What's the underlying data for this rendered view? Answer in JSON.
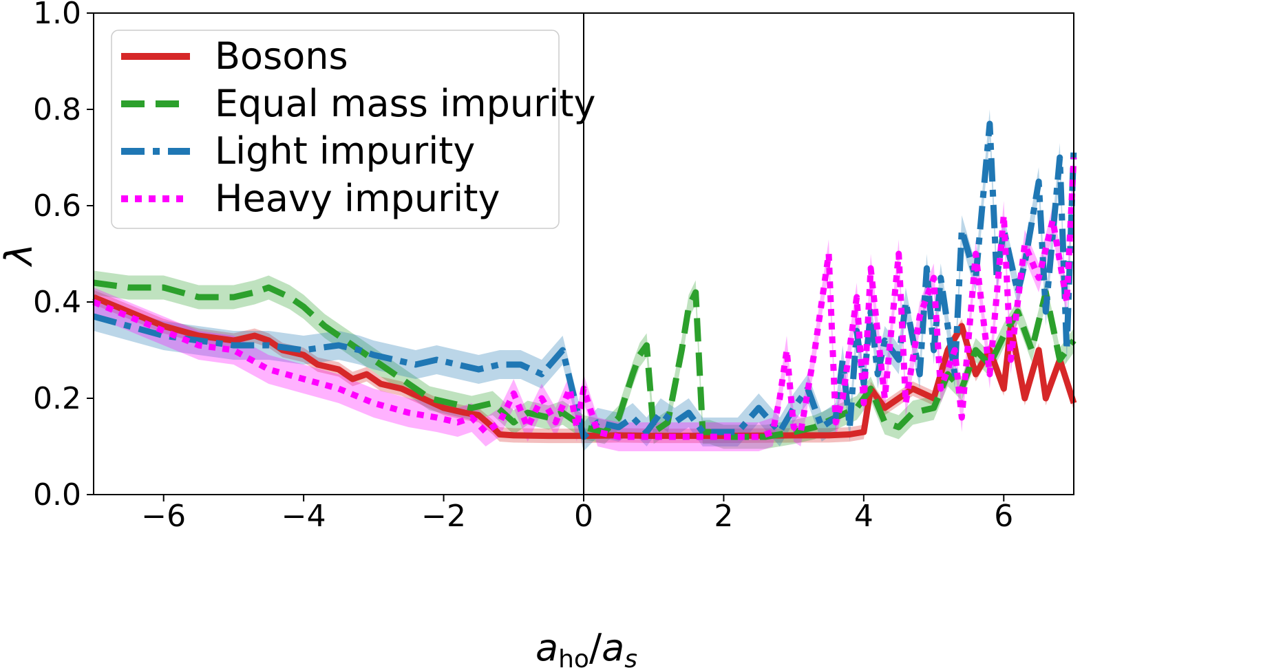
{
  "chart_data": {
    "type": "line",
    "title": "",
    "xlabel": "a_ho/a_s",
    "xlabel_parts": {
      "main1": "a",
      "sub1": "ho",
      "slash": "/",
      "main2": "a",
      "sub2": "s"
    },
    "ylabel": "λ",
    "xlim": [
      -7,
      7
    ],
    "ylim": [
      0,
      1.0
    ],
    "xticks": [
      -6,
      -4,
      -2,
      0,
      2,
      4,
      6
    ],
    "xtick_labels": [
      "−6",
      "−4",
      "−2",
      "0",
      "2",
      "4",
      "6"
    ],
    "yticks": [
      0.0,
      0.2,
      0.4,
      0.6,
      0.8,
      1.0
    ],
    "ytick_labels": [
      "0.0",
      "0.2",
      "0.4",
      "0.6",
      "0.8",
      "1.0"
    ],
    "vline_x": 0,
    "legend_position": "upper-left",
    "series": [
      {
        "name": "Bosons",
        "color": "#d62728",
        "dash": "solid",
        "x": [
          -7,
          -6.5,
          -6,
          -5.5,
          -5,
          -4.7,
          -4.5,
          -4.3,
          -4,
          -3.8,
          -3.5,
          -3.3,
          -3.1,
          -2.9,
          -2.6,
          -2.3,
          -2,
          -1.7,
          -1.5,
          -1.3,
          -1.2,
          -1,
          -0.5,
          0,
          0.5,
          1,
          2,
          3,
          3.5,
          3.8,
          4,
          4.1,
          4.3,
          4.5,
          4.7,
          5,
          5.2,
          5.4,
          5.6,
          5.8,
          6,
          6.1,
          6.3,
          6.5,
          6.6,
          6.8,
          7
        ],
        "y": [
          0.41,
          0.38,
          0.35,
          0.33,
          0.32,
          0.33,
          0.32,
          0.3,
          0.29,
          0.27,
          0.26,
          0.24,
          0.25,
          0.23,
          0.22,
          0.2,
          0.18,
          0.17,
          0.165,
          0.14,
          0.125,
          0.123,
          0.122,
          0.122,
          0.123,
          0.122,
          0.122,
          0.123,
          0.123,
          0.125,
          0.13,
          0.22,
          0.18,
          0.2,
          0.22,
          0.2,
          0.3,
          0.35,
          0.25,
          0.3,
          0.22,
          0.35,
          0.2,
          0.3,
          0.2,
          0.28,
          0.19
        ],
        "band": 0.015
      },
      {
        "name": "Equal mass impurity",
        "color": "#2ca02c",
        "dash": "dashed",
        "x": [
          -7,
          -6.5,
          -6,
          -5.5,
          -5,
          -4.7,
          -4.5,
          -4.2,
          -4,
          -3.7,
          -3.4,
          -3.1,
          -2.8,
          -2.5,
          -2.2,
          -1.9,
          -1.6,
          -1.3,
          -1,
          -0.8,
          -0.5,
          -0.3,
          0,
          0.3,
          0.5,
          0.7,
          0.8,
          0.9,
          1,
          1.2,
          1.4,
          1.5,
          1.6,
          1.7,
          1.8,
          2,
          2.3,
          2.6,
          3,
          3.3,
          3.6,
          3.9,
          4.1,
          4.3,
          4.5,
          4.7,
          5,
          5.2,
          5.4,
          5.6,
          5.8,
          6,
          6.2,
          6.4,
          6.6,
          6.8,
          7
        ],
        "y": [
          0.44,
          0.43,
          0.43,
          0.41,
          0.41,
          0.42,
          0.43,
          0.41,
          0.39,
          0.35,
          0.32,
          0.29,
          0.26,
          0.23,
          0.2,
          0.19,
          0.18,
          0.19,
          0.15,
          0.17,
          0.16,
          0.17,
          0.14,
          0.13,
          0.16,
          0.25,
          0.29,
          0.31,
          0.13,
          0.15,
          0.3,
          0.39,
          0.42,
          0.13,
          0.13,
          0.12,
          0.12,
          0.12,
          0.13,
          0.14,
          0.16,
          0.18,
          0.22,
          0.15,
          0.14,
          0.17,
          0.18,
          0.25,
          0.22,
          0.3,
          0.27,
          0.33,
          0.38,
          0.3,
          0.42,
          0.28,
          0.32
        ],
        "band": 0.025
      },
      {
        "name": "Light impurity",
        "color": "#1f77b4",
        "dash": "dashdot",
        "x": [
          -7,
          -6.5,
          -6,
          -5.5,
          -5,
          -4.5,
          -4,
          -3.5,
          -3.2,
          -3,
          -2.7,
          -2.4,
          -2.1,
          -1.8,
          -1.5,
          -1.2,
          -0.9,
          -0.6,
          -0.3,
          0,
          0.2,
          0.5,
          0.7,
          0.9,
          1.1,
          1.3,
          1.5,
          1.7,
          2,
          2.2,
          2.5,
          2.8,
          3,
          3.2,
          3.4,
          3.6,
          3.7,
          3.8,
          3.9,
          4,
          4.1,
          4.2,
          4.3,
          4.5,
          4.6,
          4.8,
          4.9,
          5,
          5.1,
          5.3,
          5.4,
          5.6,
          5.8,
          5.9,
          6,
          6.2,
          6.3,
          6.5,
          6.6,
          6.8,
          6.9,
          7
        ],
        "y": [
          0.37,
          0.35,
          0.33,
          0.32,
          0.31,
          0.31,
          0.3,
          0.31,
          0.3,
          0.29,
          0.28,
          0.27,
          0.28,
          0.27,
          0.26,
          0.27,
          0.27,
          0.25,
          0.3,
          0.12,
          0.15,
          0.14,
          0.16,
          0.13,
          0.17,
          0.15,
          0.17,
          0.13,
          0.13,
          0.13,
          0.18,
          0.13,
          0.18,
          0.22,
          0.14,
          0.16,
          0.28,
          0.14,
          0.34,
          0.23,
          0.38,
          0.25,
          0.32,
          0.28,
          0.4,
          0.25,
          0.47,
          0.3,
          0.45,
          0.25,
          0.55,
          0.45,
          0.77,
          0.45,
          0.55,
          0.42,
          0.48,
          0.65,
          0.38,
          0.7,
          0.3,
          0.72
        ],
        "band": 0.03
      },
      {
        "name": "Heavy impurity",
        "color": "#ff00ff",
        "dash": "dotted",
        "x": [
          -7,
          -6.5,
          -6,
          -5.5,
          -5,
          -4.5,
          -4,
          -3.5,
          -3,
          -2.5,
          -2.1,
          -1.8,
          -1.6,
          -1.4,
          -1.2,
          -1,
          -0.8,
          -0.6,
          -0.4,
          -0.2,
          -0.1,
          0,
          0.2,
          0.5,
          0.8,
          1,
          1.5,
          2,
          2.5,
          2.7,
          2.8,
          2.9,
          3,
          3.1,
          3.3,
          3.5,
          3.6,
          3.7,
          3.9,
          4,
          4.1,
          4.3,
          4.5,
          4.6,
          4.8,
          5,
          5.1,
          5.3,
          5.4,
          5.6,
          5.8,
          6,
          6.1,
          6.3,
          6.5,
          6.7,
          6.9,
          7
        ],
        "y": [
          0.4,
          0.37,
          0.34,
          0.31,
          0.3,
          0.26,
          0.24,
          0.22,
          0.19,
          0.17,
          0.16,
          0.15,
          0.16,
          0.13,
          0.15,
          0.21,
          0.14,
          0.2,
          0.15,
          0.22,
          0.14,
          0.22,
          0.13,
          0.12,
          0.12,
          0.12,
          0.12,
          0.12,
          0.12,
          0.13,
          0.2,
          0.3,
          0.14,
          0.13,
          0.3,
          0.5,
          0.15,
          0.2,
          0.41,
          0.19,
          0.47,
          0.2,
          0.5,
          0.19,
          0.37,
          0.45,
          0.22,
          0.3,
          0.16,
          0.5,
          0.25,
          0.58,
          0.28,
          0.52,
          0.45,
          0.57,
          0.4,
          0.7
        ],
        "band": 0.03
      }
    ]
  }
}
